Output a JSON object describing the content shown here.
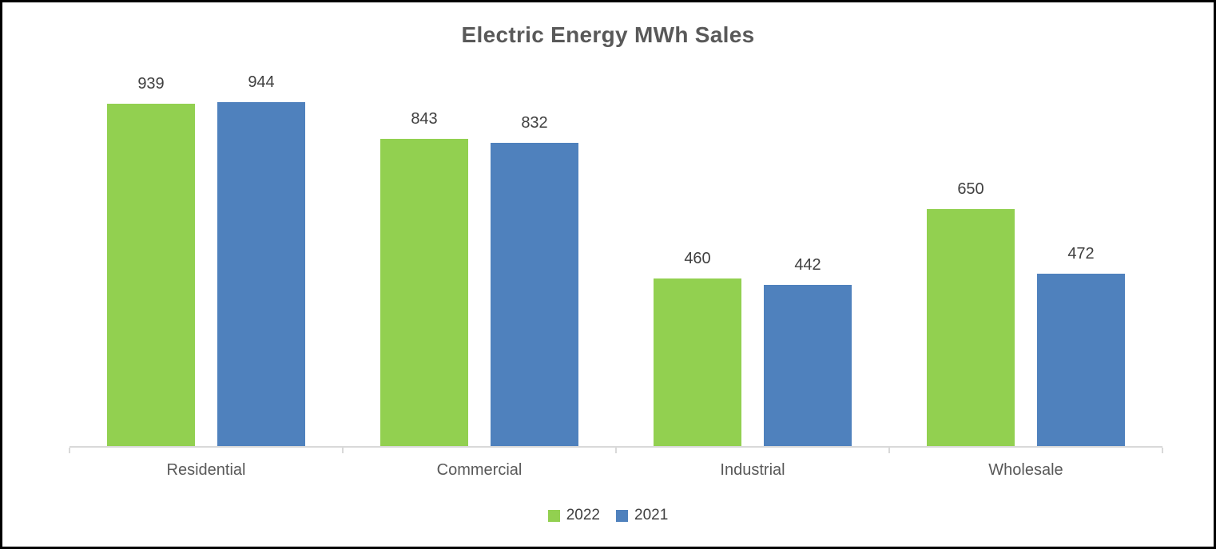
{
  "chart_data": {
    "type": "bar",
    "title": "Electric Energy MWh Sales",
    "categories": [
      "Residential",
      "Commercial",
      "Industrial",
      "Wholesale"
    ],
    "series": [
      {
        "name": "2022",
        "color": "#92D050",
        "values": [
          939,
          843,
          460,
          650
        ]
      },
      {
        "name": "2021",
        "color": "#4F81BD",
        "values": [
          944,
          832,
          442,
          472
        ]
      }
    ],
    "ylim": [
      0,
      944
    ],
    "xlabel": "",
    "ylabel": "",
    "grid": false,
    "legend_position": "bottom",
    "data_labels": true
  },
  "style_colors": {
    "title_text": "#595959",
    "data_label_text": "#404040",
    "category_label_text": "#595959",
    "legend_text": "#404040",
    "axis_line": "#D9D9D9",
    "frame_border": "#000000",
    "background": "#FFFFFF"
  }
}
